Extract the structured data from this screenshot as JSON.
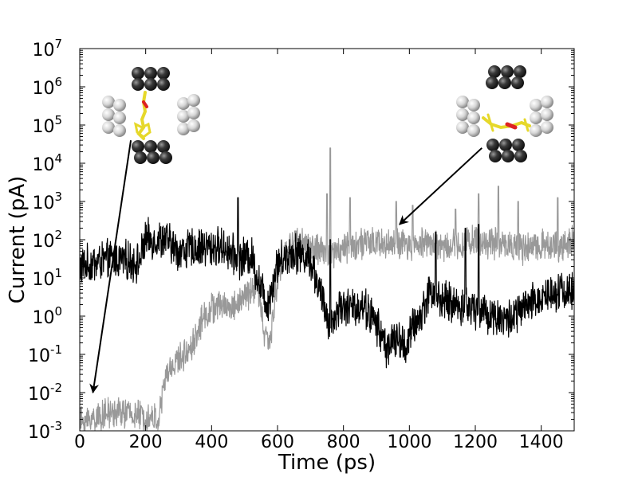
{
  "chart_data": {
    "type": "line",
    "xlabel": "Time (ps)",
    "ylabel": "Current (pA)",
    "y_scale": "log",
    "xlim": [
      0,
      1500
    ],
    "ylim_exponents": [
      -3,
      7
    ],
    "x_ticks": [
      0,
      200,
      400,
      600,
      800,
      1000,
      1200,
      1400
    ],
    "y_ticks": [
      {
        "exp": -3,
        "base": "10",
        "sup": "-3"
      },
      {
        "exp": -2,
        "base": "10",
        "sup": "-2"
      },
      {
        "exp": -1,
        "base": "10",
        "sup": "-1"
      },
      {
        "exp": 0,
        "base": "10",
        "sup": "0"
      },
      {
        "exp": 1,
        "base": "10",
        "sup": "1"
      },
      {
        "exp": 2,
        "base": "10",
        "sup": "2"
      },
      {
        "exp": 3,
        "base": "10",
        "sup": "3"
      },
      {
        "exp": 4,
        "base": "10",
        "sup": "4"
      },
      {
        "exp": 5,
        "base": "10",
        "sup": "5"
      },
      {
        "exp": 6,
        "base": "10",
        "sup": "6"
      },
      {
        "exp": 7,
        "base": "10",
        "sup": "7"
      }
    ],
    "grid": false,
    "legend": "none",
    "series": [
      {
        "color": "#000000",
        "keypoints_log10": [
          [
            0,
            1.3
          ],
          [
            100,
            1.5
          ],
          [
            180,
            1.4
          ],
          [
            200,
            2.0
          ],
          [
            260,
            2.0
          ],
          [
            300,
            1.7
          ],
          [
            360,
            1.8
          ],
          [
            440,
            1.8
          ],
          [
            480,
            1.5
          ],
          [
            520,
            1.6
          ],
          [
            540,
            1.0
          ],
          [
            570,
            0.3
          ],
          [
            600,
            1.4
          ],
          [
            650,
            1.7
          ],
          [
            700,
            1.5
          ],
          [
            730,
            0.6
          ],
          [
            760,
            -0.3
          ],
          [
            790,
            0.3
          ],
          [
            820,
            0.2
          ],
          [
            860,
            0.3
          ],
          [
            900,
            -0.2
          ],
          [
            930,
            -0.8
          ],
          [
            960,
            -0.6
          ],
          [
            990,
            -0.8
          ],
          [
            1010,
            -0.3
          ],
          [
            1040,
            0.1
          ],
          [
            1060,
            0.7
          ],
          [
            1080,
            0.6
          ],
          [
            1100,
            0.4
          ],
          [
            1140,
            0.3
          ],
          [
            1200,
            0.2
          ],
          [
            1260,
            0.0
          ],
          [
            1300,
            -0.1
          ],
          [
            1350,
            0.2
          ],
          [
            1400,
            0.5
          ],
          [
            1450,
            0.7
          ],
          [
            1500,
            0.6
          ]
        ],
        "noise_log10": 0.45,
        "spikes": [
          [
            480,
            3.1
          ],
          [
            760,
            2.0
          ],
          [
            1080,
            2.2
          ],
          [
            1170,
            2.3
          ],
          [
            1210,
            2.4
          ]
        ]
      },
      {
        "color": "#999999",
        "keypoints_log10": [
          [
            0,
            -2.8
          ],
          [
            60,
            -2.6
          ],
          [
            120,
            -2.5
          ],
          [
            180,
            -2.6
          ],
          [
            240,
            -2.7
          ],
          [
            260,
            -1.6
          ],
          [
            290,
            -1.2
          ],
          [
            320,
            -1.0
          ],
          [
            350,
            -0.6
          ],
          [
            370,
            -0.1
          ],
          [
            400,
            0.2
          ],
          [
            440,
            0.3
          ],
          [
            460,
            0.2
          ],
          [
            500,
            0.5
          ],
          [
            540,
            0.8
          ],
          [
            560,
            -0.5
          ],
          [
            580,
            -0.6
          ],
          [
            600,
            1.0
          ],
          [
            630,
            1.8
          ],
          [
            660,
            2.0
          ],
          [
            700,
            1.8
          ],
          [
            750,
            1.6
          ],
          [
            800,
            1.8
          ],
          [
            850,
            1.9
          ],
          [
            900,
            1.9
          ],
          [
            950,
            1.9
          ],
          [
            1000,
            1.8
          ],
          [
            1050,
            2.0
          ],
          [
            1100,
            1.8
          ],
          [
            1150,
            1.9
          ],
          [
            1200,
            2.0
          ],
          [
            1250,
            1.9
          ],
          [
            1300,
            1.9
          ],
          [
            1350,
            1.7
          ],
          [
            1400,
            1.9
          ],
          [
            1450,
            1.8
          ],
          [
            1500,
            2.0
          ]
        ],
        "noise_log10": 0.35,
        "spikes": [
          [
            760,
            4.4
          ],
          [
            750,
            3.2
          ],
          [
            820,
            3.1
          ],
          [
            960,
            3.0
          ],
          [
            1010,
            2.9
          ],
          [
            1140,
            2.8
          ],
          [
            1210,
            3.2
          ],
          [
            1270,
            3.4
          ],
          [
            1330,
            3.0
          ],
          [
            1450,
            3.1
          ]
        ]
      }
    ],
    "annotations": [
      {
        "type": "arrow",
        "from_data": [
          155,
          4.6
        ],
        "to_data": [
          40,
          -2.0
        ]
      },
      {
        "type": "arrow",
        "from_data": [
          1220,
          4.4
        ],
        "to_data": [
          970,
          2.4
        ]
      },
      {
        "type": "inset_image",
        "description_key": "molecule-left",
        "anchor": "top-left"
      },
      {
        "type": "inset_image",
        "description_key": "molecule-right",
        "anchor": "top-right"
      }
    ]
  }
}
